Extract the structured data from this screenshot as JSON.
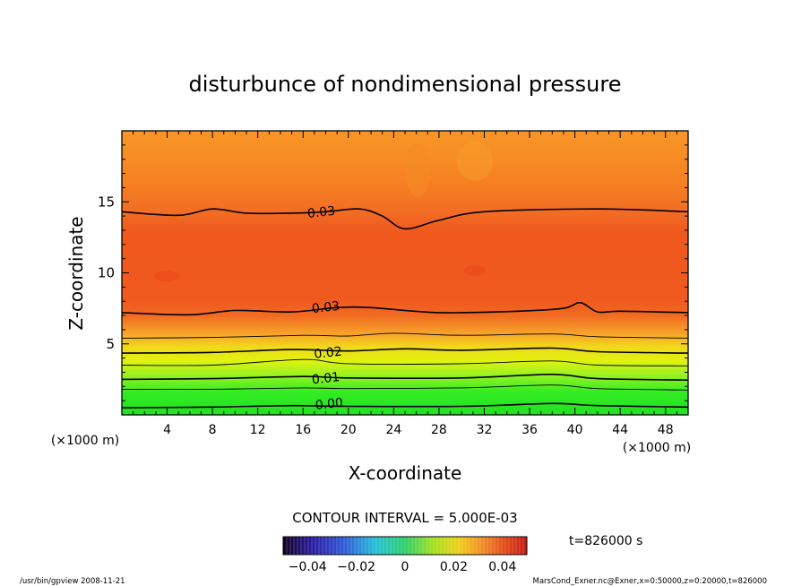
{
  "chart_data": {
    "type": "heatmap",
    "title": "disturbunce of nondimensional pressure",
    "xlabel": "X-coordinate",
    "ylabel": "Z-coordinate",
    "x_unit": "(×1000 m)",
    "y_unit": "(×1000 m)",
    "xlim": [
      0,
      50
    ],
    "ylim": [
      0,
      20
    ],
    "x_ticks": [
      4,
      8,
      12,
      16,
      20,
      24,
      28,
      32,
      36,
      40,
      44,
      48
    ],
    "y_ticks": [
      5,
      10,
      15
    ],
    "contour_interval_text": "CONTOUR INTERVAL = 5.000E-03",
    "time_text": "t=826000 s",
    "colorbar": {
      "min": -0.05,
      "max": 0.05,
      "tick_values": [
        -0.04,
        -0.02,
        0,
        0.02,
        0.04
      ],
      "tick_labels": [
        "−0.04",
        "−0.02",
        "0",
        "0.02",
        "0.04"
      ]
    },
    "contour_labels": [
      {
        "text": "0.00",
        "x": 18.3,
        "z": 0.8
      },
      {
        "text": "0.01",
        "x": 18.0,
        "z": 2.6
      },
      {
        "text": "0.02",
        "x": 18.2,
        "z": 4.4
      },
      {
        "text": "0.03",
        "x": 18.0,
        "z": 7.6
      },
      {
        "text": "0.03",
        "x": 17.6,
        "z": 14.3
      }
    ],
    "contours": [
      {
        "level": 0.0,
        "points": [
          [
            0,
            0.5
          ],
          [
            8,
            0.55
          ],
          [
            15,
            0.65
          ],
          [
            20,
            0.6
          ],
          [
            30,
            0.6
          ],
          [
            38,
            0.8
          ],
          [
            42,
            0.65
          ],
          [
            50,
            0.55
          ]
        ]
      },
      {
        "level": 0.005,
        "points": [
          [
            0,
            1.8
          ],
          [
            8,
            1.8
          ],
          [
            16,
            1.9
          ],
          [
            20,
            1.85
          ],
          [
            30,
            1.9
          ],
          [
            38,
            2.1
          ],
          [
            42,
            1.85
          ],
          [
            50,
            1.75
          ]
        ]
      },
      {
        "level": 0.01,
        "points": [
          [
            0,
            2.5
          ],
          [
            8,
            2.55
          ],
          [
            16,
            2.7
          ],
          [
            20,
            2.6
          ],
          [
            30,
            2.6
          ],
          [
            38,
            2.85
          ],
          [
            42,
            2.55
          ],
          [
            50,
            2.45
          ]
        ]
      },
      {
        "level": 0.015,
        "points": [
          [
            0,
            3.5
          ],
          [
            8,
            3.5
          ],
          [
            16,
            3.9
          ],
          [
            20,
            3.6
          ],
          [
            30,
            3.6
          ],
          [
            38,
            3.8
          ],
          [
            42,
            3.5
          ],
          [
            50,
            3.45
          ]
        ]
      },
      {
        "level": 0.02,
        "points": [
          [
            0,
            4.35
          ],
          [
            8,
            4.4
          ],
          [
            15,
            4.6
          ],
          [
            20,
            4.5
          ],
          [
            25,
            4.65
          ],
          [
            30,
            4.55
          ],
          [
            38,
            4.7
          ],
          [
            42,
            4.45
          ],
          [
            50,
            4.35
          ]
        ]
      },
      {
        "level": 0.025,
        "points": [
          [
            0,
            5.4
          ],
          [
            8,
            5.45
          ],
          [
            16,
            5.6
          ],
          [
            20,
            5.55
          ],
          [
            24,
            5.75
          ],
          [
            30,
            5.6
          ],
          [
            38,
            5.7
          ],
          [
            42,
            5.5
          ],
          [
            50,
            5.4
          ]
        ]
      },
      {
        "level": 0.03,
        "points": [
          [
            0,
            7.2
          ],
          [
            6,
            7.05
          ],
          [
            10,
            7.35
          ],
          [
            15,
            7.25
          ],
          [
            19,
            7.55
          ],
          [
            22,
            7.55
          ],
          [
            28,
            7.2
          ],
          [
            35,
            7.3
          ],
          [
            39,
            7.5
          ],
          [
            40.5,
            7.9
          ],
          [
            42,
            7.25
          ],
          [
            44,
            7.3
          ],
          [
            50,
            7.2
          ]
        ]
      },
      {
        "level": 0.03,
        "points": [
          [
            0,
            14.3
          ],
          [
            5,
            14.05
          ],
          [
            8,
            14.5
          ],
          [
            11,
            14.2
          ],
          [
            15,
            14.2
          ],
          [
            18,
            14.3
          ],
          [
            21,
            14.5
          ],
          [
            23,
            14.0
          ],
          [
            25,
            13.1
          ],
          [
            28,
            13.7
          ],
          [
            32,
            14.3
          ],
          [
            42,
            14.5
          ],
          [
            50,
            14.3
          ]
        ]
      }
    ],
    "fill_bands_note": "",
    "footer_left": "/usr/bin/gpview   2008-11-21",
    "footer_right": "MarsCond_Exner.nc@Exner,x=0:50000,z=0:20000,t=826000"
  }
}
